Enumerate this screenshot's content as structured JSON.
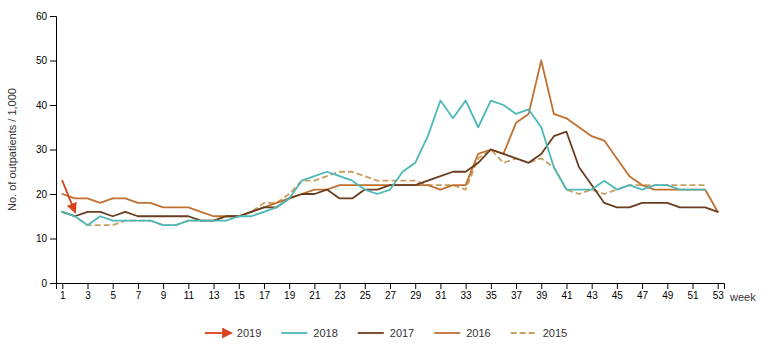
{
  "chart_data": {
    "type": "line",
    "x_label": "week",
    "y_label": "No. of outpatients / 1,000",
    "x": [
      1,
      2,
      3,
      4,
      5,
      6,
      7,
      8,
      9,
      10,
      11,
      12,
      13,
      14,
      15,
      16,
      17,
      18,
      19,
      20,
      21,
      22,
      23,
      24,
      25,
      26,
      27,
      28,
      29,
      30,
      31,
      32,
      33,
      34,
      35,
      36,
      37,
      38,
      39,
      40,
      41,
      42,
      43,
      44,
      45,
      46,
      47,
      48,
      49,
      50,
      51,
      52,
      53
    ],
    "series": [
      {
        "name": "2019",
        "color": "#d9431e",
        "line_style": "solid",
        "marker": "arrow",
        "values": [
          23,
          16,
          null,
          null,
          null,
          null,
          null,
          null,
          null,
          null,
          null,
          null,
          null,
          null,
          null,
          null,
          null,
          null,
          null,
          null,
          null,
          null,
          null,
          null,
          null,
          null,
          null,
          null,
          null,
          null,
          null,
          null,
          null,
          null,
          null,
          null,
          null,
          null,
          null,
          null,
          null,
          null,
          null,
          null,
          null,
          null,
          null,
          null,
          null,
          null,
          null,
          null,
          null
        ]
      },
      {
        "name": "2018",
        "color": "#4db8b8",
        "line_style": "solid",
        "values": [
          16,
          15,
          13,
          15,
          14,
          14,
          14,
          14,
          13,
          13,
          14,
          14,
          14,
          14,
          15,
          15,
          16,
          17,
          19,
          23,
          24,
          25,
          24,
          23,
          21,
          20,
          21,
          25,
          27,
          33,
          41,
          37,
          41,
          35,
          41,
          40,
          38,
          39,
          35,
          26,
          21,
          21,
          21,
          23,
          21,
          22,
          21,
          22,
          22,
          21,
          21,
          21,
          null
        ]
      },
      {
        "name": "2017",
        "color": "#6b3d20",
        "line_style": "solid",
        "values": [
          16,
          15,
          16,
          16,
          15,
          16,
          15,
          15,
          15,
          15,
          15,
          14,
          14,
          15,
          15,
          16,
          17,
          17,
          19,
          20,
          20,
          21,
          19,
          19,
          21,
          21,
          22,
          22,
          22,
          23,
          24,
          25,
          25,
          27,
          30,
          29,
          28,
          27,
          29,
          33,
          34,
          26,
          22,
          18,
          17,
          17,
          18,
          18,
          18,
          17,
          17,
          17,
          16
        ]
      },
      {
        "name": "2016",
        "color": "#c07030",
        "line_style": "solid",
        "values": [
          20,
          19,
          19,
          18,
          19,
          19,
          18,
          18,
          17,
          17,
          17,
          16,
          15,
          15,
          15,
          16,
          17,
          18,
          19,
          20,
          21,
          21,
          22,
          22,
          22,
          22,
          22,
          22,
          22,
          22,
          21,
          22,
          22,
          29,
          30,
          29,
          36,
          38,
          50,
          38,
          37,
          35,
          33,
          32,
          28,
          24,
          22,
          21,
          21,
          21,
          21,
          21,
          16
        ]
      },
      {
        "name": "2015",
        "color": "#c8a060",
        "line_style": "dashed",
        "values": [
          16,
          15,
          13,
          13,
          13,
          14,
          14,
          14,
          13,
          13,
          14,
          14,
          14,
          15,
          15,
          16,
          18,
          18,
          20,
          23,
          23,
          24,
          25,
          25,
          24,
          23,
          23,
          23,
          23,
          22,
          22,
          22,
          21,
          28,
          30,
          27,
          28,
          27,
          28,
          26,
          21,
          20,
          21,
          20,
          21,
          22,
          22,
          22,
          22,
          22,
          22,
          22,
          null
        ]
      }
    ],
    "xlim": [
      0.5,
      53.5
    ],
    "xticks": [
      1,
      3,
      5,
      7,
      9,
      11,
      13,
      15,
      17,
      19,
      21,
      23,
      25,
      27,
      29,
      31,
      33,
      35,
      37,
      39,
      41,
      43,
      45,
      47,
      49,
      51,
      53
    ],
    "ylim": [
      0,
      60
    ],
    "yticks": [
      0,
      10,
      20,
      30,
      40,
      50,
      60
    ],
    "grid": false,
    "legend": "bottom"
  }
}
